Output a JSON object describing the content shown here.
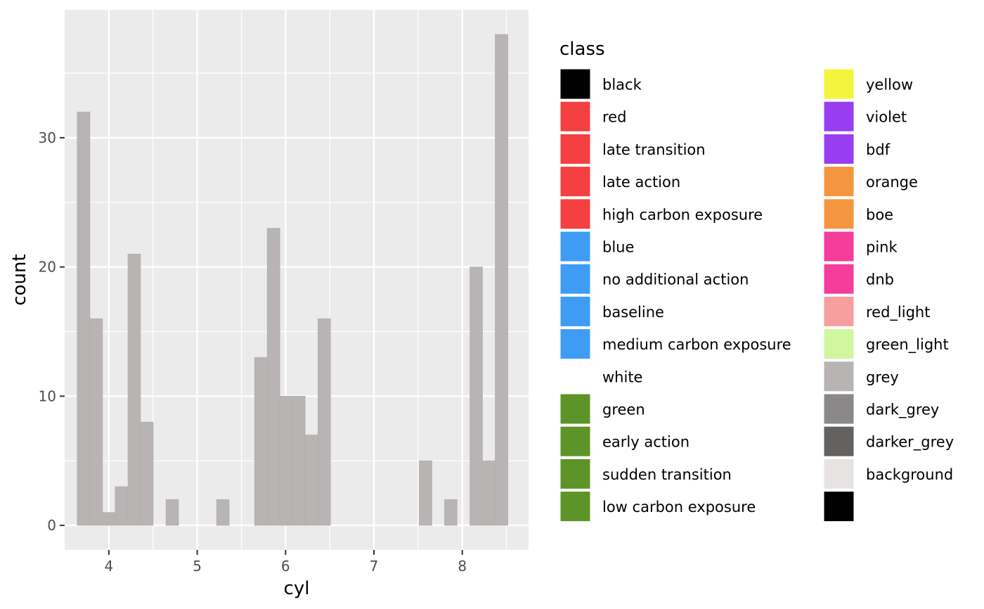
{
  "chart_data": {
    "type": "bar",
    "subtype": "histogram",
    "x_name": "cyl",
    "xlabel": "cyl",
    "ylabel": "count",
    "xlim": [
      3.5,
      8.75
    ],
    "ylim": [
      -1.9,
      39.9
    ],
    "x_ticks": [
      4,
      5,
      6,
      7,
      8
    ],
    "x_tick_labels": [
      "4",
      "5",
      "6",
      "7",
      "8"
    ],
    "y_ticks": [
      0,
      10,
      20,
      30
    ],
    "y_tick_labels": [
      "0",
      "10",
      "20",
      "30"
    ],
    "grid": true,
    "panel_background": "#EBEBEB",
    "bar_fill": "#B8B4B3",
    "bin_width": 0.1433,
    "bins": [
      {
        "x_start": 3.642,
        "x_end": 3.786,
        "count": 32
      },
      {
        "x_start": 3.786,
        "x_end": 3.929,
        "count": 16
      },
      {
        "x_start": 3.929,
        "x_end": 4.072,
        "count": 1
      },
      {
        "x_start": 4.072,
        "x_end": 4.216,
        "count": 3
      },
      {
        "x_start": 4.216,
        "x_end": 4.359,
        "count": 21
      },
      {
        "x_start": 4.359,
        "x_end": 4.502,
        "count": 8
      },
      {
        "x_start": 4.502,
        "x_end": 4.646,
        "count": 0
      },
      {
        "x_start": 4.646,
        "x_end": 4.789,
        "count": 2
      },
      {
        "x_start": 4.789,
        "x_end": 4.932,
        "count": 0
      },
      {
        "x_start": 4.932,
        "x_end": 5.076,
        "count": 0
      },
      {
        "x_start": 5.076,
        "x_end": 5.219,
        "count": 0
      },
      {
        "x_start": 5.219,
        "x_end": 5.362,
        "count": 2
      },
      {
        "x_start": 5.362,
        "x_end": 5.506,
        "count": 0
      },
      {
        "x_start": 5.506,
        "x_end": 5.649,
        "count": 0
      },
      {
        "x_start": 5.649,
        "x_end": 5.792,
        "count": 13
      },
      {
        "x_start": 5.792,
        "x_end": 5.936,
        "count": 23
      },
      {
        "x_start": 5.936,
        "x_end": 6.079,
        "count": 10
      },
      {
        "x_start": 6.079,
        "x_end": 6.222,
        "count": 10
      },
      {
        "x_start": 6.222,
        "x_end": 6.366,
        "count": 7
      },
      {
        "x_start": 6.366,
        "x_end": 6.509,
        "count": 16
      },
      {
        "x_start": 6.509,
        "x_end": 6.652,
        "count": 0
      },
      {
        "x_start": 6.652,
        "x_end": 6.796,
        "count": 0
      },
      {
        "x_start": 6.796,
        "x_end": 6.939,
        "count": 0
      },
      {
        "x_start": 6.939,
        "x_end": 7.082,
        "count": 0
      },
      {
        "x_start": 7.082,
        "x_end": 7.226,
        "count": 0
      },
      {
        "x_start": 7.226,
        "x_end": 7.369,
        "count": 0
      },
      {
        "x_start": 7.369,
        "x_end": 7.512,
        "count": 0
      },
      {
        "x_start": 7.512,
        "x_end": 7.656,
        "count": 5
      },
      {
        "x_start": 7.656,
        "x_end": 7.799,
        "count": 0
      },
      {
        "x_start": 7.799,
        "x_end": 7.942,
        "count": 2
      },
      {
        "x_start": 7.942,
        "x_end": 8.086,
        "count": 0
      },
      {
        "x_start": 8.086,
        "x_end": 8.229,
        "count": 20
      },
      {
        "x_start": 8.229,
        "x_end": 8.372,
        "count": 5
      },
      {
        "x_start": 8.372,
        "x_end": 8.516,
        "count": 38
      }
    ],
    "legend": {
      "title": "class",
      "placement": "right",
      "columns": [
        [
          {
            "label": "black",
            "color": "#000000"
          },
          {
            "label": "red",
            "color": "#F44040"
          },
          {
            "label": "late transition",
            "color": "#F44040"
          },
          {
            "label": "late action",
            "color": "#F44040"
          },
          {
            "label": "high carbon exposure",
            "color": "#F44040"
          },
          {
            "label": "blue",
            "color": "#3F9CF5"
          },
          {
            "label": "no additional action",
            "color": "#3F9CF5"
          },
          {
            "label": "baseline",
            "color": "#3F9CF5"
          },
          {
            "label": "medium carbon exposure",
            "color": "#3F9CF5"
          },
          {
            "label": "white",
            "color": "#FFFFFF"
          },
          {
            "label": "green",
            "color": "#5D9427"
          },
          {
            "label": "early action",
            "color": "#5D9427"
          },
          {
            "label": "sudden transition",
            "color": "#5D9427"
          },
          {
            "label": "low carbon exposure",
            "color": "#5D9427"
          }
        ],
        [
          {
            "label": "yellow",
            "color": "#F4F43F"
          },
          {
            "label": "violet",
            "color": "#983DF0"
          },
          {
            "label": "bdf",
            "color": "#983DF0"
          },
          {
            "label": "orange",
            "color": "#F4963F"
          },
          {
            "label": "boe",
            "color": "#F4963F"
          },
          {
            "label": "pink",
            "color": "#F53D9C"
          },
          {
            "label": "dnb",
            "color": "#F53D9C"
          },
          {
            "label": "red_light",
            "color": "#F79E9E"
          },
          {
            "label": "green_light",
            "color": "#D0F7A0"
          },
          {
            "label": "grey",
            "color": "#B8B4B3"
          },
          {
            "label": "dark_grey",
            "color": "#8A8888"
          },
          {
            "label": "darker_grey",
            "color": "#636260"
          },
          {
            "label": "background",
            "color": "#E7E3E2"
          },
          {
            "label": "",
            "color": "#000000"
          }
        ]
      ]
    }
  }
}
